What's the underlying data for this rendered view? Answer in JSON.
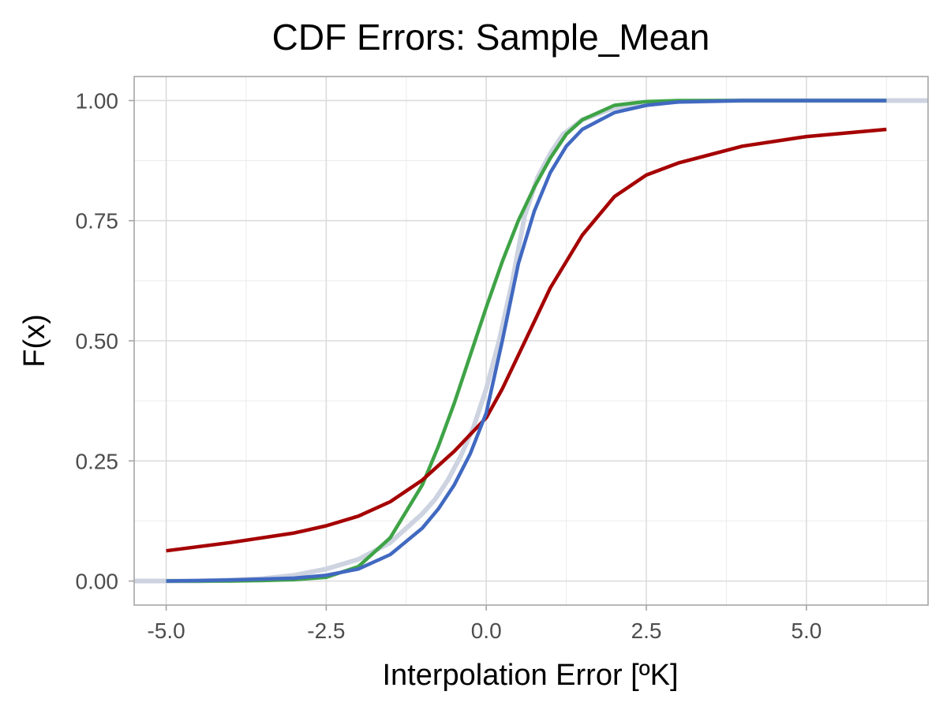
{
  "chart_data": {
    "type": "line",
    "title": "CDF Errors: Sample_Mean",
    "xlabel": "Interpolation Error [ºK]",
    "ylabel": "F(x)",
    "xlim": [
      -5.5,
      6.9
    ],
    "ylim": [
      -0.05,
      1.05
    ],
    "x_ticks": [
      -5.0,
      -2.5,
      0.0,
      2.5,
      5.0
    ],
    "x_tick_labels": [
      "-5.0",
      "-2.5",
      "0.0",
      "2.5",
      "5.0"
    ],
    "y_ticks": [
      0.0,
      0.25,
      0.5,
      0.75,
      1.0
    ],
    "y_tick_labels": [
      "0.00",
      "0.25",
      "0.50",
      "0.75",
      "1.00"
    ],
    "grid": true,
    "legend": "none",
    "series": [
      {
        "color": "#cdd3e0",
        "x": [
          -5.5,
          -4.5,
          -4.0,
          -3.5,
          -3.0,
          -2.5,
          -2.0,
          -1.5,
          -1.0,
          -0.8,
          -0.6,
          -0.4,
          -0.2,
          0.0,
          0.2,
          0.4,
          0.6,
          0.8,
          1.0,
          1.2,
          1.5,
          2.0,
          2.5,
          3.0,
          4.0,
          5.0,
          6.0,
          6.9
        ],
        "y": [
          0.0,
          0.0,
          0.002,
          0.005,
          0.012,
          0.025,
          0.045,
          0.08,
          0.14,
          0.17,
          0.21,
          0.26,
          0.32,
          0.4,
          0.5,
          0.62,
          0.76,
          0.84,
          0.89,
          0.93,
          0.96,
          0.985,
          0.995,
          0.998,
          1.0,
          1.0,
          1.0,
          1.0
        ]
      },
      {
        "color": "#3ea346",
        "x": [
          -5.0,
          -4.0,
          -3.5,
          -3.0,
          -2.5,
          -2.0,
          -1.5,
          -1.0,
          -0.75,
          -0.5,
          -0.25,
          0.0,
          0.25,
          0.5,
          0.75,
          1.0,
          1.25,
          1.5,
          2.0,
          2.5,
          3.0,
          4.0,
          5.0,
          6.25
        ],
        "y": [
          0.0,
          0.0,
          0.001,
          0.003,
          0.008,
          0.03,
          0.09,
          0.2,
          0.28,
          0.37,
          0.47,
          0.57,
          0.665,
          0.75,
          0.82,
          0.88,
          0.93,
          0.96,
          0.99,
          0.998,
          1.0,
          1.0,
          1.0,
          1.0
        ]
      },
      {
        "color": "#a50000",
        "x": [
          -5.0,
          -4.0,
          -3.0,
          -2.5,
          -2.0,
          -1.5,
          -1.0,
          -0.5,
          0.0,
          0.25,
          0.5,
          0.75,
          1.0,
          1.5,
          2.0,
          2.5,
          3.0,
          4.0,
          5.0,
          6.25
        ],
        "y": [
          0.063,
          0.08,
          0.1,
          0.115,
          0.135,
          0.165,
          0.21,
          0.27,
          0.34,
          0.4,
          0.47,
          0.54,
          0.61,
          0.72,
          0.8,
          0.845,
          0.87,
          0.905,
          0.925,
          0.94
        ]
      },
      {
        "color": "#4169c1",
        "x": [
          -5.0,
          -4.0,
          -3.0,
          -2.5,
          -2.0,
          -1.5,
          -1.0,
          -0.75,
          -0.5,
          -0.25,
          0.0,
          0.25,
          0.5,
          0.75,
          1.0,
          1.25,
          1.5,
          2.0,
          2.5,
          3.0,
          4.0,
          5.0,
          6.25
        ],
        "y": [
          0.0,
          0.002,
          0.006,
          0.012,
          0.025,
          0.055,
          0.11,
          0.15,
          0.2,
          0.265,
          0.35,
          0.5,
          0.66,
          0.77,
          0.85,
          0.905,
          0.94,
          0.975,
          0.99,
          0.997,
          1.0,
          1.0,
          1.0
        ]
      }
    ]
  }
}
